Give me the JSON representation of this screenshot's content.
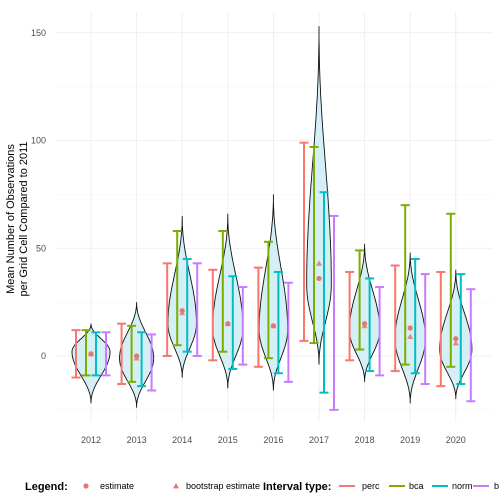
{
  "chart_data": {
    "type": "violin-interval",
    "ylabel": "Mean Number of Observations\nper Grid Cell Compared to 2011",
    "xlabel": "",
    "categories": [
      "2012",
      "2013",
      "2014",
      "2015",
      "2016",
      "2017",
      "2018",
      "2019",
      "2020"
    ],
    "yticks": [
      0,
      50,
      100,
      150
    ],
    "ylim": [
      -27,
      158
    ],
    "grid": true,
    "legend_position": "bottom",
    "colors": {
      "perc": "#F8766D",
      "bca": "#7CAE00",
      "norm": "#00BFC4",
      "basic": "#C77CFF",
      "estimate": "#E07A6E",
      "bootstrap": "#E07A6E",
      "violin_fill": "#D4EFF5"
    },
    "violins": [
      {
        "category": "2012",
        "min": -22,
        "max": 15,
        "mode": 2,
        "width": 1.0
      },
      {
        "category": "2013",
        "min": -24,
        "max": 25,
        "mode": -1,
        "width": 0.9
      },
      {
        "category": "2014",
        "min": -10,
        "max": 65,
        "mode": 15,
        "width": 0.75
      },
      {
        "category": "2015",
        "min": -15,
        "max": 66,
        "mode": 13,
        "width": 0.8
      },
      {
        "category": "2016",
        "min": -16,
        "max": 75,
        "mode": 12,
        "width": 0.75
      },
      {
        "category": "2017",
        "min": -4,
        "max": 153,
        "mode": 33,
        "width": 0.65
      },
      {
        "category": "2018",
        "min": -12,
        "max": 52,
        "mode": 12,
        "width": 0.8
      },
      {
        "category": "2019",
        "min": -22,
        "max": 48,
        "mode": 8,
        "width": 0.8
      },
      {
        "category": "2020",
        "min": -20,
        "max": 40,
        "mode": 3,
        "width": 0.85
      }
    ],
    "estimate": [
      1,
      0,
      21,
      15,
      14,
      36,
      15,
      13,
      8
    ],
    "bootstrap_estimate": [
      1,
      -1,
      20,
      15,
      14,
      43,
      14,
      9,
      6
    ],
    "intervals": {
      "perc": [
        [
          -10,
          12
        ],
        [
          -13,
          15
        ],
        [
          0,
          43
        ],
        [
          -2,
          40
        ],
        [
          -5,
          41
        ],
        [
          7,
          99
        ],
        [
          -2,
          39
        ],
        [
          -7,
          42
        ],
        [
          -14,
          39
        ]
      ],
      "bca": [
        [
          -9,
          12
        ],
        [
          -12,
          14
        ],
        [
          5,
          58
        ],
        [
          2,
          58
        ],
        [
          -1,
          53
        ],
        [
          6,
          97
        ],
        [
          3,
          49
        ],
        [
          -4,
          70
        ],
        [
          -5,
          66
        ]
      ],
      "norm": [
        [
          -9,
          11
        ],
        [
          -14,
          11
        ],
        [
          2,
          45
        ],
        [
          -6,
          37
        ],
        [
          -8,
          39
        ],
        [
          -17,
          76
        ],
        [
          -7,
          36
        ],
        [
          -8,
          45
        ],
        [
          -13,
          38
        ]
      ],
      "basic": [
        [
          -9,
          11
        ],
        [
          -16,
          10
        ],
        [
          0,
          43
        ],
        [
          -4,
          32
        ],
        [
          -12,
          34
        ],
        [
          -25,
          65
        ],
        [
          -9,
          32
        ],
        [
          -13,
          38
        ],
        [
          -21,
          31
        ]
      ]
    },
    "legend": {
      "title": "Legend:",
      "items": [
        "estimate",
        "bootstrap estimate"
      ],
      "interval_title": "Interval type:",
      "interval_items": [
        "perc",
        "bca",
        "norm",
        "b"
      ]
    }
  }
}
